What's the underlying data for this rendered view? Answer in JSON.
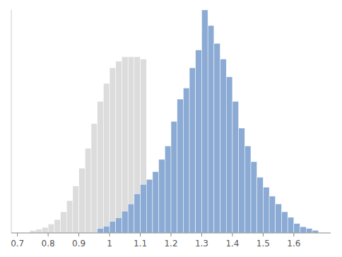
{
  "chart_data": {
    "type": "histogram",
    "xlim": [
      0.68,
      1.72
    ],
    "ylim": [
      0,
      1
    ],
    "xticks": [
      0.7,
      0.8,
      0.9,
      1,
      1.1,
      1.2,
      1.3,
      1.4,
      1.5,
      1.6
    ],
    "tick_labels": "x",
    "series": [
      {
        "color": "#DCDCDC",
        "bins": [
          0.74,
          0.76,
          0.78,
          0.8,
          0.82,
          0.84,
          0.86,
          0.88,
          0.9,
          0.92,
          0.94,
          0.96,
          0.98,
          1.0,
          1.02,
          1.04,
          1.06,
          1.08,
          1.1,
          1.12,
          1.14,
          1.16,
          1.18
        ],
        "values": [
          0.01,
          0.016,
          0.025,
          0.04,
          0.06,
          0.095,
          0.145,
          0.21,
          0.29,
          0.38,
          0.49,
          0.59,
          0.67,
          0.74,
          0.77,
          0.79,
          0.79,
          0.79,
          0.78,
          0.2,
          0.05,
          0.02
        ]
      },
      {
        "color": "#8BAAD4",
        "bins": [
          0.96,
          0.98,
          1.0,
          1.02,
          1.04,
          1.06,
          1.08,
          1.1,
          1.12,
          1.14,
          1.16,
          1.18,
          1.2,
          1.22,
          1.24,
          1.26,
          1.28,
          1.3,
          1.32,
          1.34,
          1.36,
          1.38,
          1.4,
          1.42,
          1.44,
          1.46,
          1.48,
          1.5,
          1.52,
          1.54,
          1.56,
          1.58,
          1.6,
          1.62,
          1.64,
          1.66,
          1.68
        ],
        "values": [
          0.02,
          0.03,
          0.052,
          0.068,
          0.098,
          0.13,
          0.175,
          0.218,
          0.24,
          0.275,
          0.33,
          0.39,
          0.5,
          0.6,
          0.65,
          0.74,
          0.82,
          1.0,
          0.93,
          0.85,
          0.78,
          0.7,
          0.59,
          0.47,
          0.39,
          0.32,
          0.25,
          0.205,
          0.165,
          0.13,
          0.095,
          0.07,
          0.042,
          0.028,
          0.02,
          0.012
        ]
      }
    ]
  }
}
